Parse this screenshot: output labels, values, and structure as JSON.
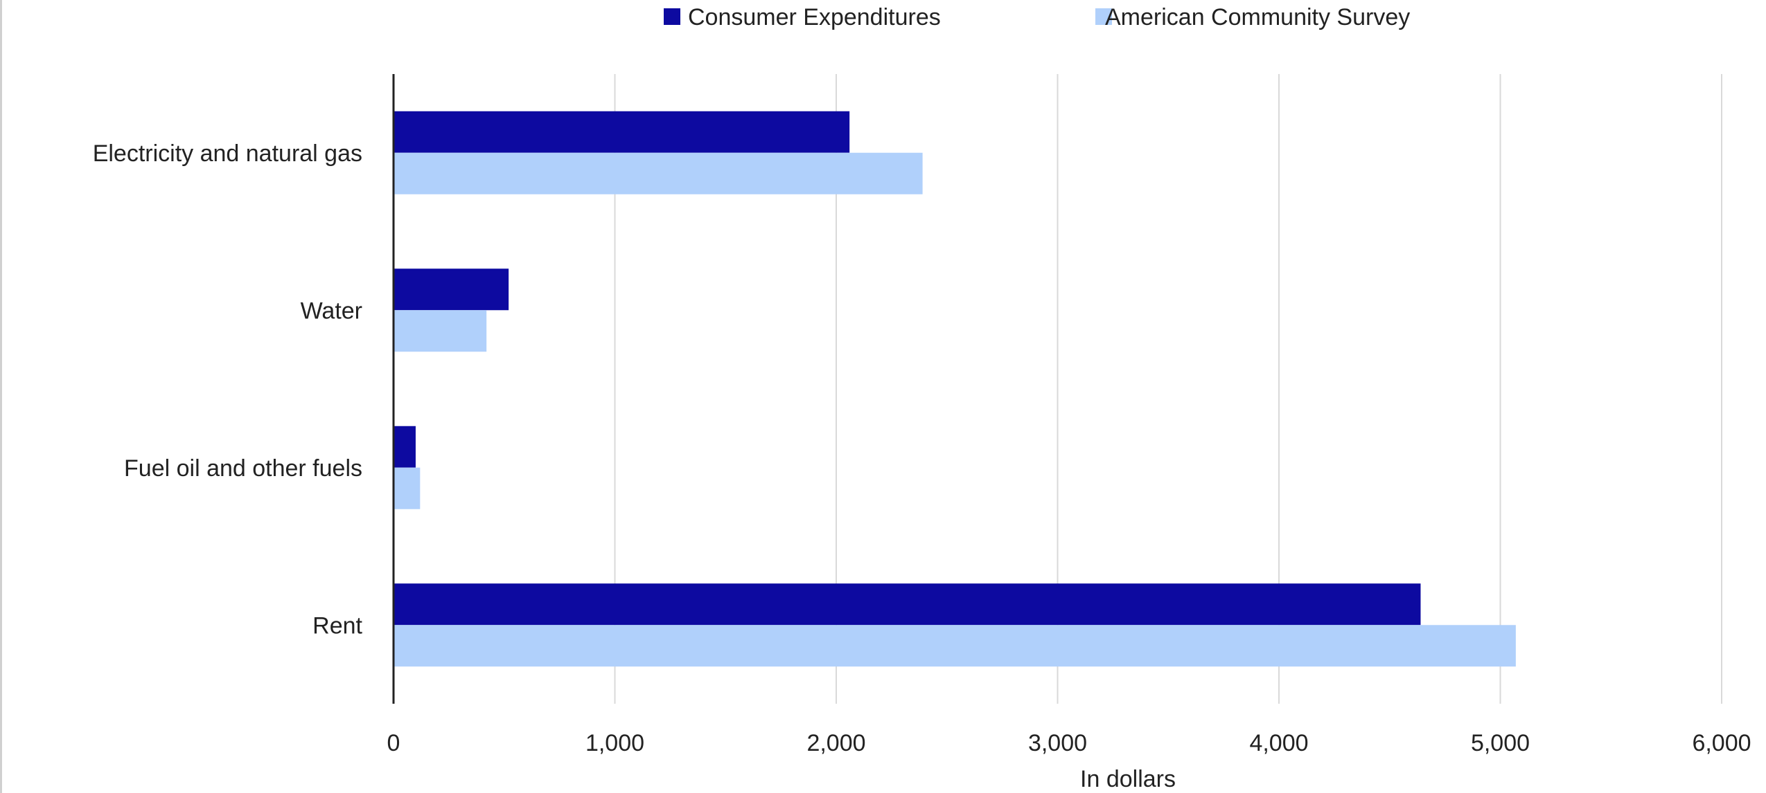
{
  "chart_data": {
    "type": "bar",
    "orientation": "horizontal",
    "title": "",
    "xlabel": "In dollars",
    "ylabel": "",
    "xlim": [
      0,
      6000
    ],
    "x_ticks": [
      0,
      1000,
      2000,
      3000,
      4000,
      5000,
      6000
    ],
    "x_tick_labels": [
      "0",
      "1,000",
      "2,000",
      "3,000",
      "4,000",
      "5,000",
      "6,000"
    ],
    "grid": true,
    "legend_position": "top",
    "categories": [
      "Electricity and natural gas",
      "Water",
      "Fuel oil and other fuels",
      "Rent"
    ],
    "series": [
      {
        "name": "Consumer Expenditures",
        "color": "#0d0aa0",
        "values": [
          2060,
          520,
          100,
          4640
        ]
      },
      {
        "name": "American Community Survey",
        "color": "#b0d0fb",
        "values": [
          2390,
          420,
          120,
          5070
        ]
      }
    ]
  }
}
